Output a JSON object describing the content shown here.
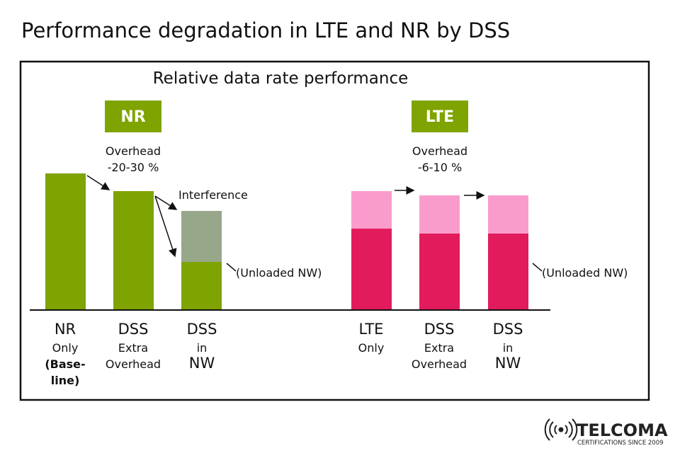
{
  "header": {
    "title": "Performance degradation in LTE and NR by DSS"
  },
  "panel": {
    "subtitle": "Relative data rate performance",
    "groups": [
      {
        "label": "NR",
        "overhead": [
          "Overhead",
          "-20-30 %"
        ],
        "interference": "Interference",
        "note": "(Unloaded NW)",
        "categories": [
          [
            "NR",
            "Only",
            "(Base-",
            "line)"
          ],
          [
            "DSS",
            "Extra",
            "Overhead"
          ],
          [
            "DSS",
            "in",
            "NW"
          ]
        ]
      },
      {
        "label": "LTE",
        "overhead": [
          "Overhead",
          "-6-10 %"
        ],
        "note": "(Unloaded NW)",
        "categories": [
          [
            "LTE",
            "Only"
          ],
          [
            "DSS",
            "Extra",
            "Overhead"
          ],
          [
            "DSS",
            "in",
            "NW"
          ]
        ]
      }
    ]
  },
  "footer": {
    "brand": "TELCOMA",
    "tagline": "CERTIFICATIONS SINCE 2009"
  }
}
